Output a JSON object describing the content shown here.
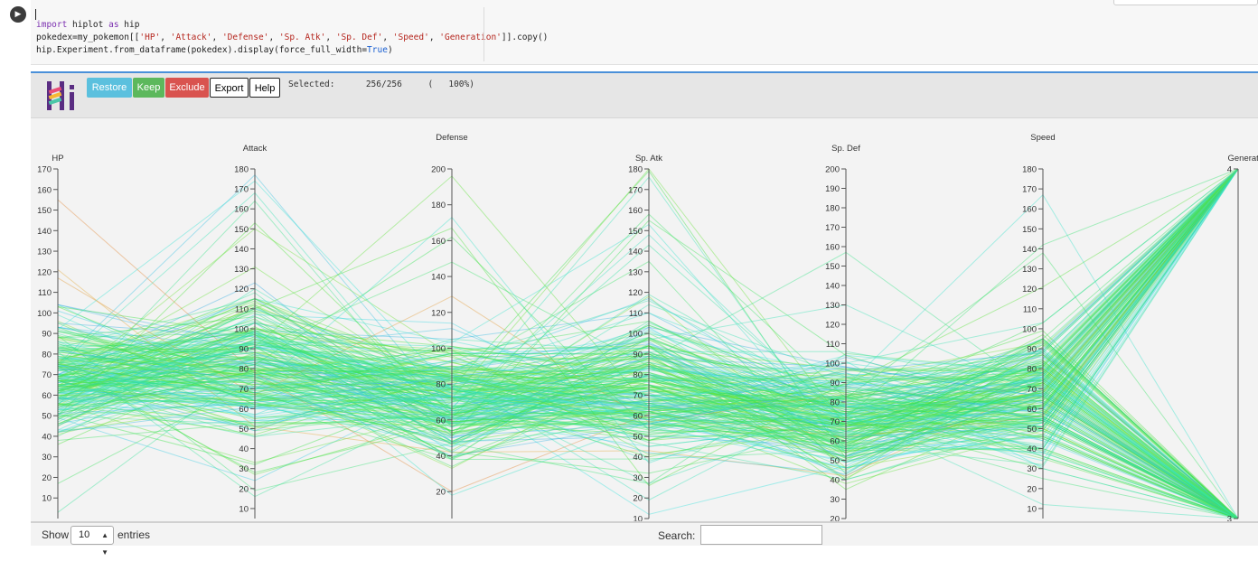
{
  "code_cell": {
    "run_icon": "play-icon",
    "lines": [
      {
        "parts": [
          {
            "t": "import",
            "c": "kw"
          },
          {
            "t": " hiplot ",
            "c": ""
          },
          {
            "t": "as",
            "c": "kw"
          },
          {
            "t": " hip",
            "c": ""
          }
        ]
      },
      {
        "parts": [
          {
            "t": "pokedex=my_pokemon[[",
            "c": ""
          },
          {
            "t": "'HP'",
            "c": "str"
          },
          {
            "t": ", ",
            "c": ""
          },
          {
            "t": "'Attack'",
            "c": "str"
          },
          {
            "t": ", ",
            "c": ""
          },
          {
            "t": "'Defense'",
            "c": "str"
          },
          {
            "t": ", ",
            "c": ""
          },
          {
            "t": "'Sp. Atk'",
            "c": "str"
          },
          {
            "t": ", ",
            "c": ""
          },
          {
            "t": "'Sp. Def'",
            "c": "str"
          },
          {
            "t": ", ",
            "c": ""
          },
          {
            "t": "'Speed'",
            "c": "str"
          },
          {
            "t": ", ",
            "c": ""
          },
          {
            "t": "'Generation'",
            "c": "str"
          },
          {
            "t": "]].copy()",
            "c": ""
          }
        ]
      },
      {
        "parts": [
          {
            "t": "hip.Experiment.from_dataframe(pokedex).display(force_full_width=",
            "c": ""
          },
          {
            "t": "True",
            "c": "true"
          },
          {
            "t": ")",
            "c": ""
          }
        ]
      }
    ]
  },
  "hiplot": {
    "logo_text": "Hi",
    "buttons": {
      "restore": "Restore",
      "keep": "Keep",
      "exclude": "Exclude",
      "export": "Export",
      "help": "Help"
    },
    "selected_label": "Selected:",
    "selected_count": "256/256",
    "selected_percent": "(   100%)",
    "colors": {
      "restore": "#5bc0de",
      "keep": "#5cb85c",
      "exclude": "#d9534f"
    }
  },
  "table_controls": {
    "show_label": "Show",
    "entries_value": "10",
    "entries_label": "entries",
    "search_label": "Search:",
    "search_value": ""
  },
  "chart_data": {
    "type": "parallel_coordinates",
    "record_count": 256,
    "axes": [
      {
        "name": "HP",
        "min": 0,
        "max": 170,
        "ticks": [
          10,
          20,
          30,
          40,
          50,
          60,
          70,
          80,
          90,
          100,
          110,
          120,
          130,
          140,
          150,
          160,
          170
        ]
      },
      {
        "name": "Attack",
        "min": 5,
        "max": 180,
        "ticks": [
          10,
          20,
          30,
          40,
          50,
          60,
          70,
          80,
          90,
          100,
          110,
          120,
          130,
          140,
          150,
          160,
          170,
          180
        ]
      },
      {
        "name": "Defense",
        "min": 5,
        "max": 200,
        "ticks": [
          20,
          40,
          60,
          80,
          100,
          120,
          140,
          160,
          180,
          200
        ]
      },
      {
        "name": "Sp. Atk",
        "min": 10,
        "max": 180,
        "ticks": [
          10,
          20,
          30,
          40,
          50,
          60,
          70,
          80,
          90,
          100,
          110,
          120,
          130,
          140,
          150,
          160,
          170,
          180
        ]
      },
      {
        "name": "Sp. Def",
        "min": 20,
        "max": 200,
        "ticks": [
          20,
          30,
          40,
          50,
          60,
          70,
          80,
          90,
          100,
          110,
          120,
          130,
          140,
          150,
          160,
          170,
          180,
          190,
          200
        ]
      },
      {
        "name": "Speed",
        "min": 5,
        "max": 180,
        "ticks": [
          10,
          20,
          30,
          40,
          50,
          60,
          70,
          80,
          90,
          100,
          110,
          120,
          130,
          140,
          150,
          160,
          170,
          180
        ]
      },
      {
        "name": "Generation",
        "min": 3,
        "max": 4,
        "ticks": [
          3,
          4
        ]
      }
    ],
    "color_by": "Generation"
  }
}
